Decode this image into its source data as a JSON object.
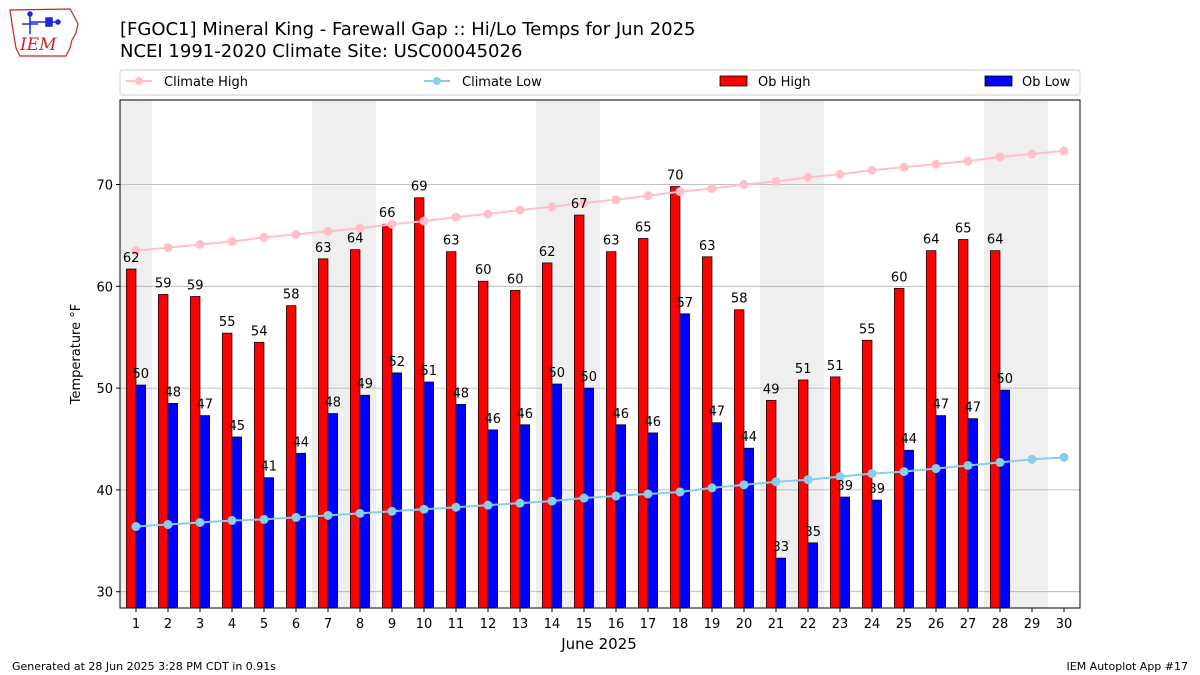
{
  "header": {
    "title_line1": "[FGOC1] Mineral King - Farewall Gap :: Hi/Lo Temps for Jun 2025",
    "title_line2": "NCEI 1991-2020 Climate Site: USC00045026",
    "logo_text": "IEM"
  },
  "footer": {
    "left": "Generated at 28 Jun 2025 3:28 PM CDT in 0.91s",
    "right": "IEM Autoplot App #17"
  },
  "colors": {
    "ob_high": "#ff0000",
    "ob_low": "#0000ff",
    "climate_high": "#ffc0cb",
    "climate_low": "#87ceeb",
    "weekend_band": "#efefef",
    "grid": "#b0b0b0"
  },
  "chart_data": {
    "type": "bar",
    "xlabel": "June 2025",
    "ylabel": "Temperature °F",
    "ylim": [
      28.4,
      78.3
    ],
    "xlim": [
      0.5,
      30.5
    ],
    "yticks": [
      30,
      40,
      50,
      60,
      70
    ],
    "grid": "horizontal",
    "legend_placement": "top",
    "categories": [
      "1",
      "2",
      "3",
      "4",
      "5",
      "6",
      "7",
      "8",
      "9",
      "10",
      "11",
      "12",
      "13",
      "14",
      "15",
      "16",
      "17",
      "18",
      "19",
      "20",
      "21",
      "22",
      "23",
      "24",
      "25",
      "26",
      "27",
      "28",
      "29",
      "30"
    ],
    "shaded_days": [
      1,
      7,
      8,
      14,
      15,
      21,
      22,
      28,
      29
    ],
    "legend": [
      "Climate High",
      "Climate Low",
      "Ob High",
      "Ob Low"
    ],
    "series": [
      {
        "name": "Ob High",
        "kind": "bar",
        "values": [
          61.7,
          59.2,
          59.0,
          55.4,
          54.5,
          58.1,
          62.7,
          63.6,
          66.1,
          68.7,
          63.4,
          60.5,
          59.6,
          62.3,
          67.0,
          63.4,
          64.7,
          69.8,
          62.9,
          57.7,
          48.8,
          50.8,
          51.1,
          54.7,
          59.8,
          63.5,
          64.6,
          63.5,
          null,
          null
        ],
        "labels": [
          "62",
          "59",
          "59",
          "55",
          "54",
          "58",
          "63",
          "64",
          "66",
          "69",
          "63",
          "60",
          "60",
          "62",
          "67",
          "63",
          "65",
          "70",
          "63",
          "58",
          "49",
          "51",
          "51",
          "55",
          "60",
          "64",
          "65",
          "64",
          "",
          ""
        ]
      },
      {
        "name": "Ob Low",
        "kind": "bar",
        "values": [
          50.3,
          48.5,
          47.3,
          45.2,
          41.2,
          43.6,
          47.5,
          49.3,
          51.5,
          50.6,
          48.4,
          45.9,
          46.4,
          50.4,
          50.0,
          46.4,
          45.6,
          57.3,
          46.6,
          44.1,
          33.3,
          34.8,
          39.3,
          39.0,
          43.9,
          47.3,
          47.0,
          49.8,
          null,
          null
        ],
        "labels": [
          "50",
          "48",
          "47",
          "45",
          "41",
          "44",
          "48",
          "49",
          "52",
          "51",
          "48",
          "46",
          "46",
          "50",
          "50",
          "46",
          "46",
          "57",
          "47",
          "44",
          "33",
          "35",
          "39",
          "39",
          "44",
          "47",
          "47",
          "50",
          "",
          ""
        ]
      },
      {
        "name": "Climate High",
        "kind": "line",
        "values": [
          63.5,
          63.8,
          64.1,
          64.4,
          64.8,
          65.1,
          65.4,
          65.7,
          66.1,
          66.4,
          66.8,
          67.1,
          67.5,
          67.8,
          68.2,
          68.5,
          68.9,
          69.3,
          69.6,
          70.0,
          70.3,
          70.7,
          71.0,
          71.4,
          71.7,
          72.0,
          72.3,
          72.7,
          73.0,
          73.3
        ]
      },
      {
        "name": "Climate Low",
        "kind": "line",
        "values": [
          36.4,
          36.6,
          36.8,
          37.0,
          37.1,
          37.3,
          37.5,
          37.7,
          37.9,
          38.1,
          38.3,
          38.5,
          38.7,
          38.9,
          39.2,
          39.4,
          39.6,
          39.8,
          40.2,
          40.5,
          40.8,
          41.0,
          41.3,
          41.6,
          41.8,
          42.1,
          42.4,
          42.7,
          43.0,
          43.2
        ]
      }
    ]
  }
}
